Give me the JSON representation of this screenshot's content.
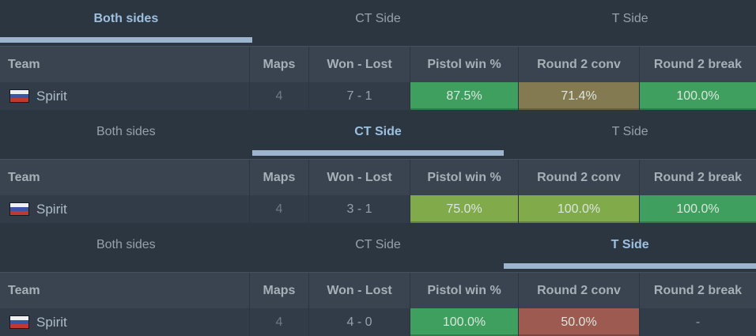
{
  "tabs": [
    "Both sides",
    "CT Side",
    "T Side"
  ],
  "columns": [
    "Team",
    "Maps",
    "Won - Lost",
    "Pistol win %",
    "Round 2 conv",
    "Round 2 break"
  ],
  "theme": {
    "accent_underline": "#9db4ce",
    "active_tab_text": "#9dc0df",
    "green": "#3f9f5e",
    "olive": "#847a52",
    "yellow_green": "#81aa4b",
    "red": "#9d5a50"
  },
  "sections": [
    {
      "active_tab": "Both sides",
      "row": {
        "flag_icon": "russia-flag",
        "team": "Spirit",
        "maps": "4",
        "won_lost": "7 - 1",
        "pistol_win": {
          "text": "87.5%",
          "color": "#3f9f5e"
        },
        "round2_conv": {
          "text": "71.4%",
          "color": "#847a52"
        },
        "round2_break": {
          "text": "100.0%",
          "color": "#3f9f5e"
        }
      }
    },
    {
      "active_tab": "CT Side",
      "row": {
        "flag_icon": "russia-flag",
        "team": "Spirit",
        "maps": "4",
        "won_lost": "3 - 1",
        "pistol_win": {
          "text": "75.0%",
          "color": "#81aa4b"
        },
        "round2_conv": {
          "text": "100.0%",
          "color": "#81aa4b"
        },
        "round2_break": {
          "text": "100.0%",
          "color": "#3f9f5e"
        }
      }
    },
    {
      "active_tab": "T Side",
      "row": {
        "flag_icon": "russia-flag",
        "team": "Spirit",
        "maps": "4",
        "won_lost": "4 - 0",
        "pistol_win": {
          "text": "100.0%",
          "color": "#3f9f5e"
        },
        "round2_conv": {
          "text": "50.0%",
          "color": "#9d5a50"
        },
        "round2_break": {
          "text": "-",
          "color": null
        }
      }
    }
  ]
}
